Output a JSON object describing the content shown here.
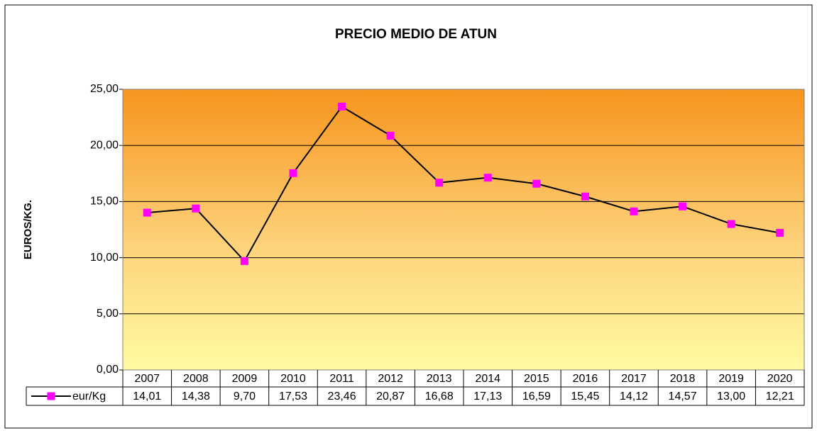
{
  "chart_data": {
    "type": "line",
    "title": "PRECIO MEDIO DE ATUN",
    "y_label": "EUROS/KG.",
    "categories": [
      "2007",
      "2008",
      "2009",
      "2010",
      "2011",
      "2012",
      "2013",
      "2014",
      "2015",
      "2016",
      "2017",
      "2018",
      "2019",
      "2020"
    ],
    "series": [
      {
        "name": "eur/Kg",
        "color": "#ff00ff",
        "line_color": "#000000",
        "values": [
          14.01,
          14.38,
          9.7,
          17.53,
          23.46,
          20.87,
          16.68,
          17.13,
          16.59,
          15.45,
          14.12,
          14.57,
          13.0,
          12.21
        ],
        "value_labels": [
          "14,01",
          "14,38",
          "9,70",
          "17,53",
          "23,46",
          "20,87",
          "16,68",
          "17,13",
          "16,59",
          "15,45",
          "14,12",
          "14,57",
          "13,00",
          "12,21"
        ]
      }
    ],
    "ylim": [
      0,
      25
    ],
    "yticks": [
      {
        "value": 0,
        "label": "0,00"
      },
      {
        "value": 5,
        "label": "5,00"
      },
      {
        "value": 10,
        "label": "10,00"
      },
      {
        "value": 15,
        "label": "15,00"
      },
      {
        "value": 20,
        "label": "20,00"
      },
      {
        "value": 25,
        "label": "25,00"
      }
    ],
    "grid": true
  }
}
